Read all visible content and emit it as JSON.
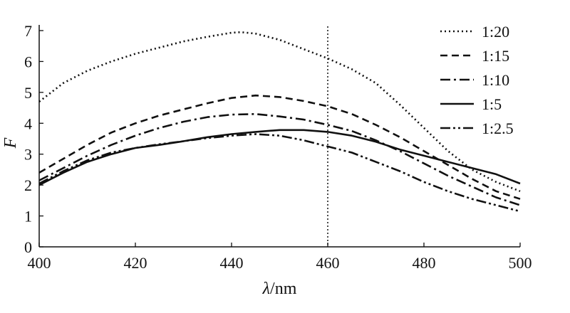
{
  "chart_data": {
    "type": "line",
    "xlabel_symbol": "λ",
    "xlabel_unit": "/nm",
    "ylabel": "F",
    "xlim": [
      400,
      500
    ],
    "ylim": [
      0,
      7
    ],
    "xticks": [
      "400",
      "420",
      "440",
      "460",
      "480",
      "500"
    ],
    "yticks": [
      "0",
      "1",
      "2",
      "3",
      "4",
      "5",
      "6",
      "7"
    ],
    "vline_x": 460,
    "legend_position": "top-right",
    "series": [
      {
        "name": "1:20",
        "style": "dotted",
        "x": [
          400,
          405,
          410,
          415,
          420,
          425,
          430,
          435,
          440,
          442,
          445,
          450,
          455,
          460,
          465,
          470,
          475,
          480,
          485,
          490,
          495,
          500
        ],
        "y": [
          4.7,
          5.3,
          5.7,
          6.0,
          6.25,
          6.45,
          6.65,
          6.8,
          6.93,
          6.95,
          6.9,
          6.7,
          6.4,
          6.1,
          5.75,
          5.3,
          4.6,
          3.85,
          3.1,
          2.5,
          2.1,
          1.8
        ]
      },
      {
        "name": "1:15",
        "style": "dashed",
        "x": [
          400,
          405,
          410,
          415,
          420,
          425,
          430,
          435,
          440,
          445,
          450,
          455,
          460,
          465,
          470,
          475,
          480,
          485,
          490,
          495,
          500
        ],
        "y": [
          2.4,
          2.85,
          3.3,
          3.7,
          4.0,
          4.25,
          4.45,
          4.65,
          4.82,
          4.9,
          4.85,
          4.72,
          4.55,
          4.3,
          3.95,
          3.55,
          3.1,
          2.65,
          2.2,
          1.8,
          1.55
        ]
      },
      {
        "name": "1:10",
        "style": "dashdot",
        "x": [
          400,
          405,
          410,
          415,
          420,
          425,
          430,
          435,
          440,
          445,
          450,
          455,
          460,
          465,
          470,
          475,
          480,
          485,
          490,
          495,
          500
        ],
        "y": [
          2.15,
          2.55,
          2.95,
          3.3,
          3.6,
          3.85,
          4.05,
          4.2,
          4.28,
          4.3,
          4.22,
          4.12,
          3.95,
          3.75,
          3.45,
          3.1,
          2.7,
          2.3,
          1.95,
          1.6,
          1.35
        ]
      },
      {
        "name": "1:5",
        "style": "solid",
        "x": [
          400,
          405,
          410,
          415,
          420,
          425,
          430,
          435,
          440,
          445,
          450,
          455,
          460,
          465,
          470,
          475,
          480,
          485,
          490,
          495,
          500
        ],
        "y": [
          2.0,
          2.4,
          2.75,
          3.0,
          3.2,
          3.3,
          3.42,
          3.55,
          3.65,
          3.72,
          3.78,
          3.78,
          3.72,
          3.6,
          3.4,
          3.15,
          2.95,
          2.75,
          2.55,
          2.35,
          2.05
        ]
      },
      {
        "name": "1:2.5",
        "style": "dashdotdot",
        "x": [
          400,
          405,
          410,
          415,
          420,
          425,
          430,
          435,
          440,
          445,
          450,
          455,
          460,
          465,
          470,
          475,
          480,
          485,
          490,
          495,
          500
        ],
        "y": [
          2.05,
          2.45,
          2.8,
          3.05,
          3.2,
          3.32,
          3.42,
          3.52,
          3.6,
          3.65,
          3.6,
          3.45,
          3.25,
          3.05,
          2.75,
          2.45,
          2.1,
          1.8,
          1.55,
          1.35,
          1.15
        ]
      }
    ]
  }
}
